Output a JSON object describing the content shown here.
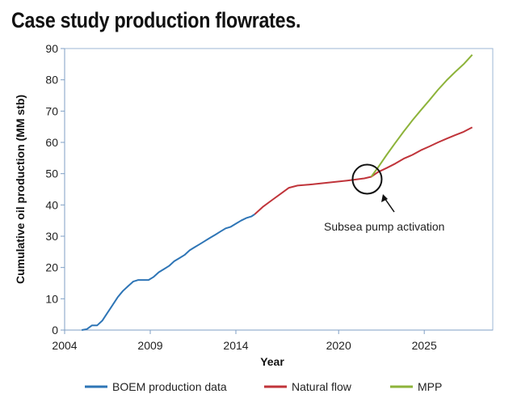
{
  "chart_data": {
    "type": "line",
    "title": "Case study production flowrates.",
    "xlabel": "Year",
    "ylabel": "Cumulative oil production (MM stb)",
    "xlim": [
      2004,
      2029
    ],
    "ylim": [
      0,
      90
    ],
    "xticks": [
      "2004",
      "2009",
      "2014",
      "2020",
      "2025"
    ],
    "yticks": [
      "0",
      "10",
      "20",
      "30",
      "40",
      "50",
      "60",
      "70",
      "80",
      "90"
    ],
    "legend_position": "bottom",
    "grid": false,
    "series": [
      {
        "name": "BOEM production data",
        "color": "#2e75b6",
        "points": [
          [
            2005.0,
            0
          ],
          [
            2005.3,
            0.3
          ],
          [
            2005.6,
            1.5
          ],
          [
            2005.9,
            1.5
          ],
          [
            2006.2,
            3
          ],
          [
            2006.5,
            5.5
          ],
          [
            2006.8,
            8
          ],
          [
            2007.1,
            10.5
          ],
          [
            2007.4,
            12.5
          ],
          [
            2007.7,
            14
          ],
          [
            2008.0,
            15.5
          ],
          [
            2008.3,
            16
          ],
          [
            2008.6,
            16
          ],
          [
            2008.9,
            16
          ],
          [
            2009.2,
            17
          ],
          [
            2009.5,
            18.5
          ],
          [
            2009.8,
            19.5
          ],
          [
            2010.1,
            20.5
          ],
          [
            2010.4,
            22
          ],
          [
            2010.7,
            23
          ],
          [
            2011.0,
            24
          ],
          [
            2011.3,
            25.5
          ],
          [
            2011.6,
            26.5
          ],
          [
            2011.9,
            27.5
          ],
          [
            2012.2,
            28.5
          ],
          [
            2012.5,
            29.5
          ],
          [
            2012.8,
            30.5
          ],
          [
            2013.1,
            31.5
          ],
          [
            2013.4,
            32.5
          ],
          [
            2013.7,
            33
          ],
          [
            2014.0,
            34
          ],
          [
            2014.3,
            35
          ],
          [
            2014.6,
            35.8
          ],
          [
            2014.9,
            36.3
          ],
          [
            2015.1,
            37
          ]
        ]
      },
      {
        "name": "Natural flow",
        "color": "#c0343a",
        "points": [
          [
            2015.1,
            37
          ],
          [
            2015.6,
            39.5
          ],
          [
            2016.1,
            41.5
          ],
          [
            2016.6,
            43.5
          ],
          [
            2017.1,
            45.5
          ],
          [
            2017.6,
            46.2
          ],
          [
            2018.5,
            46.6
          ],
          [
            2019.5,
            47.2
          ],
          [
            2020.5,
            47.8
          ],
          [
            2021.5,
            48.5
          ],
          [
            2021.9,
            49
          ],
          [
            2022.3,
            50.5
          ],
          [
            2022.8,
            51.8
          ],
          [
            2023.3,
            53.2
          ],
          [
            2023.8,
            54.8
          ],
          [
            2024.3,
            56
          ],
          [
            2024.8,
            57.5
          ],
          [
            2025.3,
            58.7
          ],
          [
            2025.8,
            60
          ],
          [
            2026.3,
            61.2
          ],
          [
            2026.8,
            62.3
          ],
          [
            2027.3,
            63.4
          ],
          [
            2027.8,
            64.8
          ]
        ]
      },
      {
        "name": "MPP",
        "color": "#8db33a",
        "points": [
          [
            2021.9,
            49
          ],
          [
            2022.3,
            52
          ],
          [
            2022.8,
            56
          ],
          [
            2023.3,
            59.8
          ],
          [
            2023.8,
            63.5
          ],
          [
            2024.3,
            67
          ],
          [
            2024.8,
            70.3
          ],
          [
            2025.3,
            73.5
          ],
          [
            2025.8,
            76.8
          ],
          [
            2026.3,
            79.8
          ],
          [
            2026.8,
            82.5
          ],
          [
            2027.3,
            85
          ],
          [
            2027.8,
            88
          ]
        ]
      }
    ],
    "annotations": [
      {
        "text": "Subsea pump activation",
        "target": [
          2021.9,
          49
        ]
      }
    ]
  }
}
